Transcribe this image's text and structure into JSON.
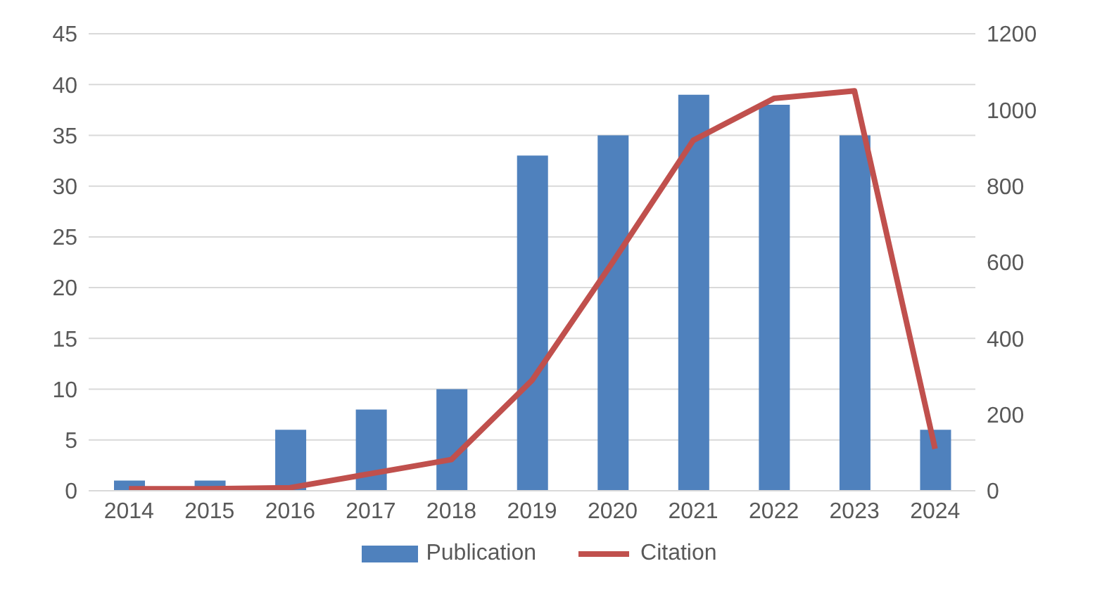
{
  "chart_data": {
    "type": "bar",
    "categories": [
      "2014",
      "2015",
      "2016",
      "2017",
      "2018",
      "2019",
      "2020",
      "2021",
      "2022",
      "2023",
      "2024"
    ],
    "series": [
      {
        "name": "Publication",
        "color": "#4f81bd",
        "values": [
          1,
          1,
          6,
          8,
          10,
          33,
          35,
          39,
          38,
          35,
          6
        ]
      },
      {
        "name": "Citation",
        "type": "line",
        "axis": "y2",
        "color": "#c0504d",
        "values": [
          5,
          5,
          8,
          45,
          82,
          290,
          600,
          920,
          1030,
          1050,
          110
        ]
      }
    ],
    "ylim": [
      0,
      45
    ],
    "yticks": [
      0,
      5,
      10,
      15,
      20,
      25,
      30,
      35,
      40,
      45
    ],
    "y2lim": [
      0,
      1200
    ],
    "y2ticks": [
      0,
      200,
      400,
      600,
      800,
      1000,
      1200
    ],
    "grid": "y",
    "legend": "bottom",
    "marker": "none",
    "line_style": "solid"
  }
}
